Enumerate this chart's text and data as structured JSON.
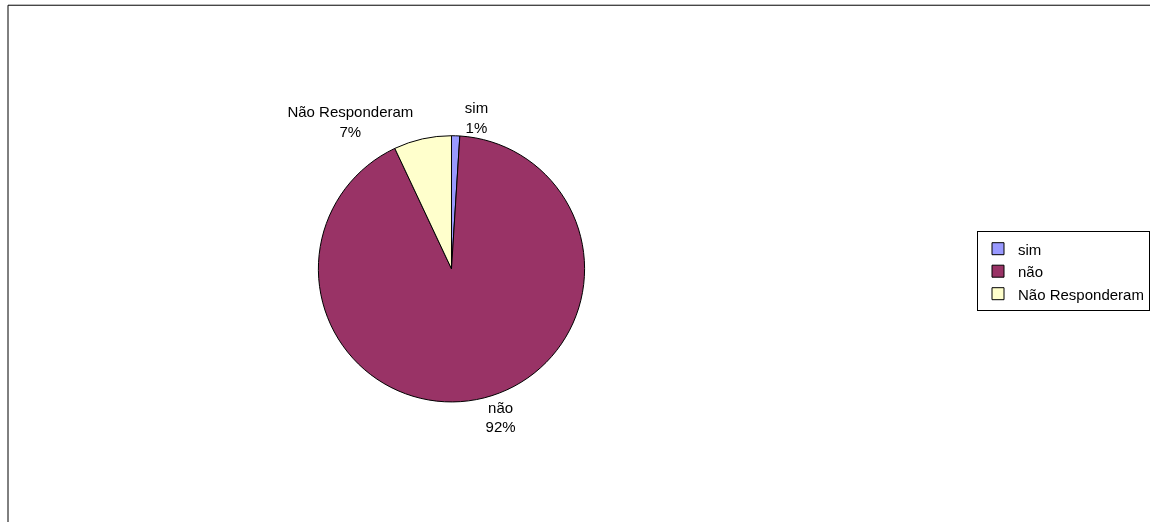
{
  "chart_data": {
    "type": "pie",
    "categories": [
      "sim",
      "não",
      "Não Responderam"
    ],
    "values": [
      1,
      92,
      7
    ],
    "colors": [
      "#9999ff",
      "#993366",
      "#ffffcc"
    ],
    "value_labels": [
      "1%",
      "92%",
      "7%"
    ],
    "legend": "right"
  }
}
